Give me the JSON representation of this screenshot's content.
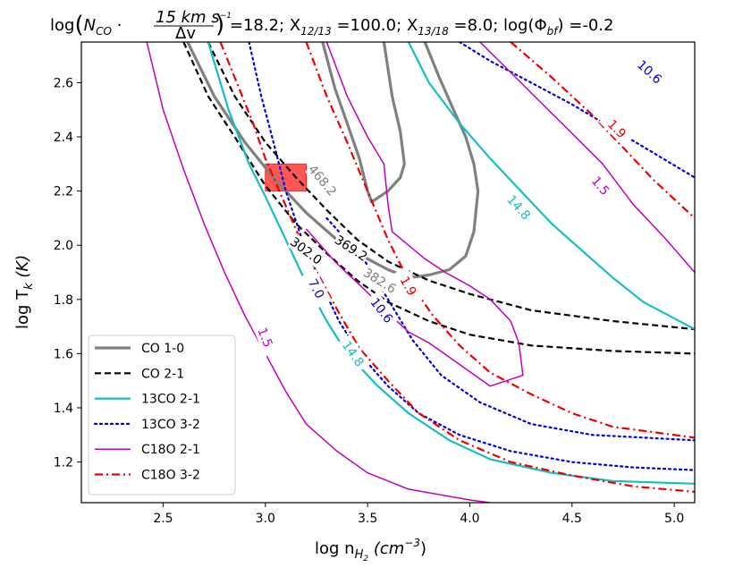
{
  "chart_data": {
    "type": "line",
    "title_parts": {
      "log": "log",
      "n_co": "N",
      "n_co_sub": "CO",
      "frac_num": "15 km s",
      "frac_num_exp": "−1",
      "frac_den": "Δv",
      "rest": " =18.2; X",
      "x1213_sub": "12/13",
      "x1213_val": " =100.0; X",
      "x1318_sub": "13/18",
      "x1318_val": " =8.0; log(Φ",
      "phi_sub": "bf",
      "phi_val": ") =-0.2"
    },
    "xlabel": "log n",
    "xlabel_sub": "H",
    "xlabel_sub2": "2",
    "xlabel_unit": " (cm",
    "xlabel_unit_exp": "−3",
    "xlabel_end": ")",
    "ylabel": "log T",
    "ylabel_sub": "k",
    "ylabel_unit": " (K)",
    "xlim": [
      2.1,
      5.1
    ],
    "ylim": [
      1.05,
      2.75
    ],
    "xticks": [
      "2.5",
      "3.0",
      "3.5",
      "4.0",
      "4.5",
      "5.0"
    ],
    "xtick_values": [
      2.5,
      3.0,
      3.5,
      4.0,
      4.5,
      5.0
    ],
    "yticks": [
      "1.2",
      "1.4",
      "1.6",
      "1.8",
      "2.0",
      "2.2",
      "2.4",
      "2.6"
    ],
    "ytick_values": [
      1.2,
      1.4,
      1.6,
      1.8,
      2.0,
      2.2,
      2.4,
      2.6
    ],
    "region": {
      "x": [
        3.0,
        3.2
      ],
      "y": [
        2.2,
        2.3
      ],
      "color": "#ff4d4d"
    },
    "series": [
      {
        "name": "CO 1-0",
        "color": "#808080",
        "style": "solid",
        "width": 3.2,
        "lines": [
          [
            [
              2.62,
              2.75
            ],
            [
              2.75,
              2.55
            ],
            [
              2.9,
              2.38
            ],
            [
              3.05,
              2.24
            ],
            [
              3.2,
              2.12
            ],
            [
              3.35,
              2.02
            ],
            [
              3.5,
              1.95
            ],
            [
              3.6,
              1.91
            ],
            [
              3.7,
              1.88
            ],
            [
              3.8,
              1.89
            ],
            [
              3.9,
              1.91
            ],
            [
              3.98,
              1.96
            ],
            [
              4.02,
              2.05
            ],
            [
              4.04,
              2.2
            ],
            [
              4.02,
              2.3
            ],
            [
              3.98,
              2.4
            ],
            [
              3.92,
              2.5
            ],
            [
              3.85,
              2.62
            ],
            [
              3.78,
              2.75
            ]
          ],
          [
            [
              3.28,
              2.75
            ],
            [
              3.34,
              2.58
            ],
            [
              3.4,
              2.45
            ],
            [
              3.46,
              2.32
            ],
            [
              3.5,
              2.2
            ],
            [
              3.52,
              2.16
            ],
            [
              3.6,
              2.2
            ],
            [
              3.66,
              2.25
            ],
            [
              3.68,
              2.3
            ],
            [
              3.66,
              2.42
            ],
            [
              3.62,
              2.55
            ],
            [
              3.58,
              2.75
            ]
          ]
        ],
        "labels": [
          {
            "text": "468.2",
            "x": 3.28,
            "y": 2.24,
            "angle": -50
          },
          {
            "text": "382.6",
            "x": 3.56,
            "y": 1.87,
            "angle": -32
          }
        ]
      },
      {
        "name": "CO 2-1",
        "color": "#000000",
        "style": "dashed",
        "width": 2.2,
        "lines": [
          [
            [
              2.72,
              2.75
            ],
            [
              2.85,
              2.55
            ],
            [
              3.0,
              2.38
            ],
            [
              3.15,
              2.25
            ],
            [
              3.3,
              2.13
            ],
            [
              3.45,
              2.02
            ],
            [
              3.6,
              1.94
            ],
            [
              3.8,
              1.87
            ],
            [
              4.0,
              1.82
            ],
            [
              4.3,
              1.76
            ],
            [
              4.7,
              1.72
            ],
            [
              5.1,
              1.69
            ]
          ],
          [
            [
              2.6,
              2.75
            ],
            [
              2.72,
              2.55
            ],
            [
              2.85,
              2.4
            ],
            [
              3.0,
              2.22
            ],
            [
              3.15,
              2.08
            ],
            [
              3.3,
              1.97
            ],
            [
              3.45,
              1.87
            ],
            [
              3.6,
              1.79
            ],
            [
              3.8,
              1.72
            ],
            [
              4.0,
              1.67
            ],
            [
              4.3,
              1.63
            ],
            [
              4.7,
              1.61
            ],
            [
              5.1,
              1.6
            ]
          ]
        ],
        "labels": [
          {
            "text": "369.2",
            "x": 3.42,
            "y": 1.99,
            "angle": -33
          },
          {
            "text": "302.0",
            "x": 3.2,
            "y": 1.98,
            "angle": -37
          }
        ]
      },
      {
        "name": "13CO 2-1",
        "color": "#17bfbf",
        "style": "solid",
        "width": 2.2,
        "lines": [
          [
            [
              2.72,
              2.75
            ],
            [
              2.82,
              2.5
            ],
            [
              2.92,
              2.3
            ],
            [
              3.0,
              2.18
            ],
            [
              3.1,
              2.02
            ],
            [
              3.2,
              1.86
            ],
            [
              3.3,
              1.72
            ],
            [
              3.4,
              1.6
            ],
            [
              3.55,
              1.48
            ],
            [
              3.7,
              1.38
            ],
            [
              3.9,
              1.28
            ],
            [
              4.1,
              1.21
            ],
            [
              4.4,
              1.16
            ],
            [
              4.7,
              1.13
            ],
            [
              5.1,
              1.12
            ]
          ],
          [
            [
              3.7,
              2.75
            ],
            [
              3.8,
              2.6
            ],
            [
              3.95,
              2.45
            ],
            [
              4.1,
              2.32
            ],
            [
              4.25,
              2.2
            ],
            [
              4.4,
              2.08
            ],
            [
              4.55,
              1.98
            ],
            [
              4.7,
              1.88
            ],
            [
              4.85,
              1.79
            ],
            [
              5.1,
              1.69
            ]
          ]
        ],
        "labels": [
          {
            "text": "14.8",
            "x": 3.43,
            "y": 1.6,
            "angle": -55
          },
          {
            "text": "14.8",
            "x": 4.24,
            "y": 2.14,
            "angle": -48
          }
        ]
      },
      {
        "name": "13CO 3-2",
        "color": "#0000dd",
        "style": "dotted",
        "width": 2.2,
        "lines": [
          [
            [
              2.92,
              2.75
            ],
            [
              2.98,
              2.55
            ],
            [
              3.04,
              2.38
            ],
            [
              3.1,
              2.2
            ],
            [
              3.18,
              2.02
            ],
            [
              3.26,
              1.88
            ],
            [
              3.36,
              1.72
            ],
            [
              3.46,
              1.6
            ],
            [
              3.6,
              1.48
            ],
            [
              3.75,
              1.38
            ],
            [
              3.95,
              1.3
            ],
            [
              4.2,
              1.24
            ],
            [
              4.5,
              1.2
            ],
            [
              4.8,
              1.18
            ],
            [
              5.1,
              1.17
            ]
          ],
          [
            [
              3.95,
              2.75
            ],
            [
              4.1,
              2.68
            ],
            [
              4.3,
              2.6
            ],
            [
              4.5,
              2.52
            ],
            [
              4.7,
              2.43
            ],
            [
              4.9,
              2.34
            ],
            [
              5.1,
              2.25
            ]
          ],
          [
            [
              3.3,
              2.1
            ],
            [
              3.48,
              1.95
            ],
            [
              3.6,
              1.8
            ],
            [
              3.72,
              1.65
            ],
            [
              3.86,
              1.52
            ],
            [
              4.05,
              1.42
            ],
            [
              4.3,
              1.34
            ],
            [
              4.6,
              1.3
            ],
            [
              5.1,
              1.28
            ]
          ]
        ],
        "labels": [
          {
            "text": "7.0",
            "x": 3.25,
            "y": 1.84,
            "angle": -62
          },
          {
            "text": "10.6",
            "x": 3.57,
            "y": 1.76,
            "angle": -52
          },
          {
            "text": "10.6",
            "x": 4.88,
            "y": 2.64,
            "angle": -42
          }
        ]
      },
      {
        "name": "C18O 2-1",
        "color": "#c000c0",
        "style": "solid",
        "width": 1.5,
        "lines": [
          [
            [
              2.42,
              2.75
            ],
            [
              2.5,
              2.5
            ],
            [
              2.6,
              2.28
            ],
            [
              2.7,
              2.08
            ],
            [
              2.8,
              1.9
            ],
            [
              2.9,
              1.74
            ],
            [
              3.0,
              1.6
            ],
            [
              3.1,
              1.46
            ],
            [
              3.2,
              1.34
            ],
            [
              3.35,
              1.24
            ],
            [
              3.5,
              1.16
            ],
            [
              3.7,
              1.1
            ],
            [
              4.0,
              1.06
            ],
            [
              4.1,
              1.05
            ]
          ],
          [
            [
              3.3,
              2.75
            ],
            [
              3.4,
              2.55
            ],
            [
              3.5,
              2.4
            ],
            [
              3.58,
              2.3
            ],
            [
              3.6,
              2.15
            ],
            [
              3.62,
              2.05
            ],
            [
              3.7,
              2.0
            ],
            [
              3.78,
              1.95
            ],
            [
              3.88,
              1.9
            ],
            [
              4.0,
              1.85
            ],
            [
              4.1,
              1.8
            ],
            [
              4.2,
              1.72
            ],
            [
              4.24,
              1.64
            ],
            [
              4.26,
              1.52
            ],
            [
              4.1,
              1.48
            ],
            [
              3.95,
              1.56
            ],
            [
              3.8,
              1.64
            ],
            [
              3.7,
              1.68
            ],
            [
              3.6,
              1.75
            ],
            [
              3.48,
              1.84
            ],
            [
              3.34,
              1.94
            ],
            [
              3.2,
              2.06
            ]
          ],
          [
            [
              4.05,
              2.75
            ],
            [
              4.25,
              2.6
            ],
            [
              4.45,
              2.45
            ],
            [
              4.65,
              2.3
            ],
            [
              4.8,
              2.15
            ],
            [
              4.95,
              2.03
            ],
            [
              5.1,
              1.9
            ]
          ]
        ],
        "labels": [
          {
            "text": "1.5",
            "x": 3.0,
            "y": 1.66,
            "angle": -68
          },
          {
            "text": "1.5",
            "x": 4.64,
            "y": 2.22,
            "angle": -50
          }
        ]
      },
      {
        "name": "C18O 3-2",
        "color": "#ee0000",
        "style": "dashdot",
        "width": 2.2,
        "lines": [
          [
            [
              2.78,
              2.75
            ],
            [
              2.86,
              2.6
            ],
            [
              2.94,
              2.45
            ],
            [
              3.0,
              2.32
            ],
            [
              3.08,
              2.18
            ],
            [
              3.16,
              2.04
            ],
            [
              3.26,
              1.89
            ],
            [
              3.36,
              1.75
            ],
            [
              3.46,
              1.62
            ],
            [
              3.6,
              1.5
            ],
            [
              3.75,
              1.38
            ],
            [
              3.95,
              1.28
            ],
            [
              4.2,
              1.2
            ],
            [
              4.5,
              1.15
            ],
            [
              4.8,
              1.11
            ],
            [
              5.1,
              1.09
            ]
          ],
          [
            [
              3.2,
              2.75
            ],
            [
              3.3,
              2.55
            ],
            [
              3.4,
              2.38
            ],
            [
              3.5,
              2.2
            ],
            [
              3.6,
              2.02
            ],
            [
              3.7,
              1.87
            ],
            [
              3.82,
              1.74
            ],
            [
              3.95,
              1.63
            ],
            [
              4.1,
              1.53
            ],
            [
              4.3,
              1.45
            ],
            [
              4.5,
              1.38
            ],
            [
              4.7,
              1.33
            ],
            [
              5.1,
              1.29
            ]
          ],
          [
            [
              4.2,
              2.75
            ],
            [
              4.4,
              2.62
            ],
            [
              4.6,
              2.48
            ],
            [
              4.75,
              2.36
            ],
            [
              4.9,
              2.24
            ],
            [
              5.1,
              2.1
            ]
          ]
        ],
        "labels": [
          {
            "text": "1.9",
            "x": 3.7,
            "y": 1.85,
            "angle": -60
          },
          {
            "text": "1.9",
            "x": 4.72,
            "y": 2.43,
            "angle": -45
          }
        ]
      }
    ],
    "legend": [
      {
        "label": "CO 1-0",
        "color": "#808080",
        "style": "solid",
        "width": 3.2
      },
      {
        "label": "CO 2-1",
        "color": "#000000",
        "style": "dashed",
        "width": 2.2
      },
      {
        "label": "13CO 2-1",
        "color": "#17bfbf",
        "style": "solid",
        "width": 2.2
      },
      {
        "label": "13CO 3-2",
        "color": "#0000dd",
        "style": "dotted",
        "width": 2.2
      },
      {
        "label": "C18O 2-1",
        "color": "#c000c0",
        "style": "solid",
        "width": 1.5
      },
      {
        "label": "C18O 3-2",
        "color": "#ee0000",
        "style": "dashdot",
        "width": 2.2
      }
    ]
  }
}
